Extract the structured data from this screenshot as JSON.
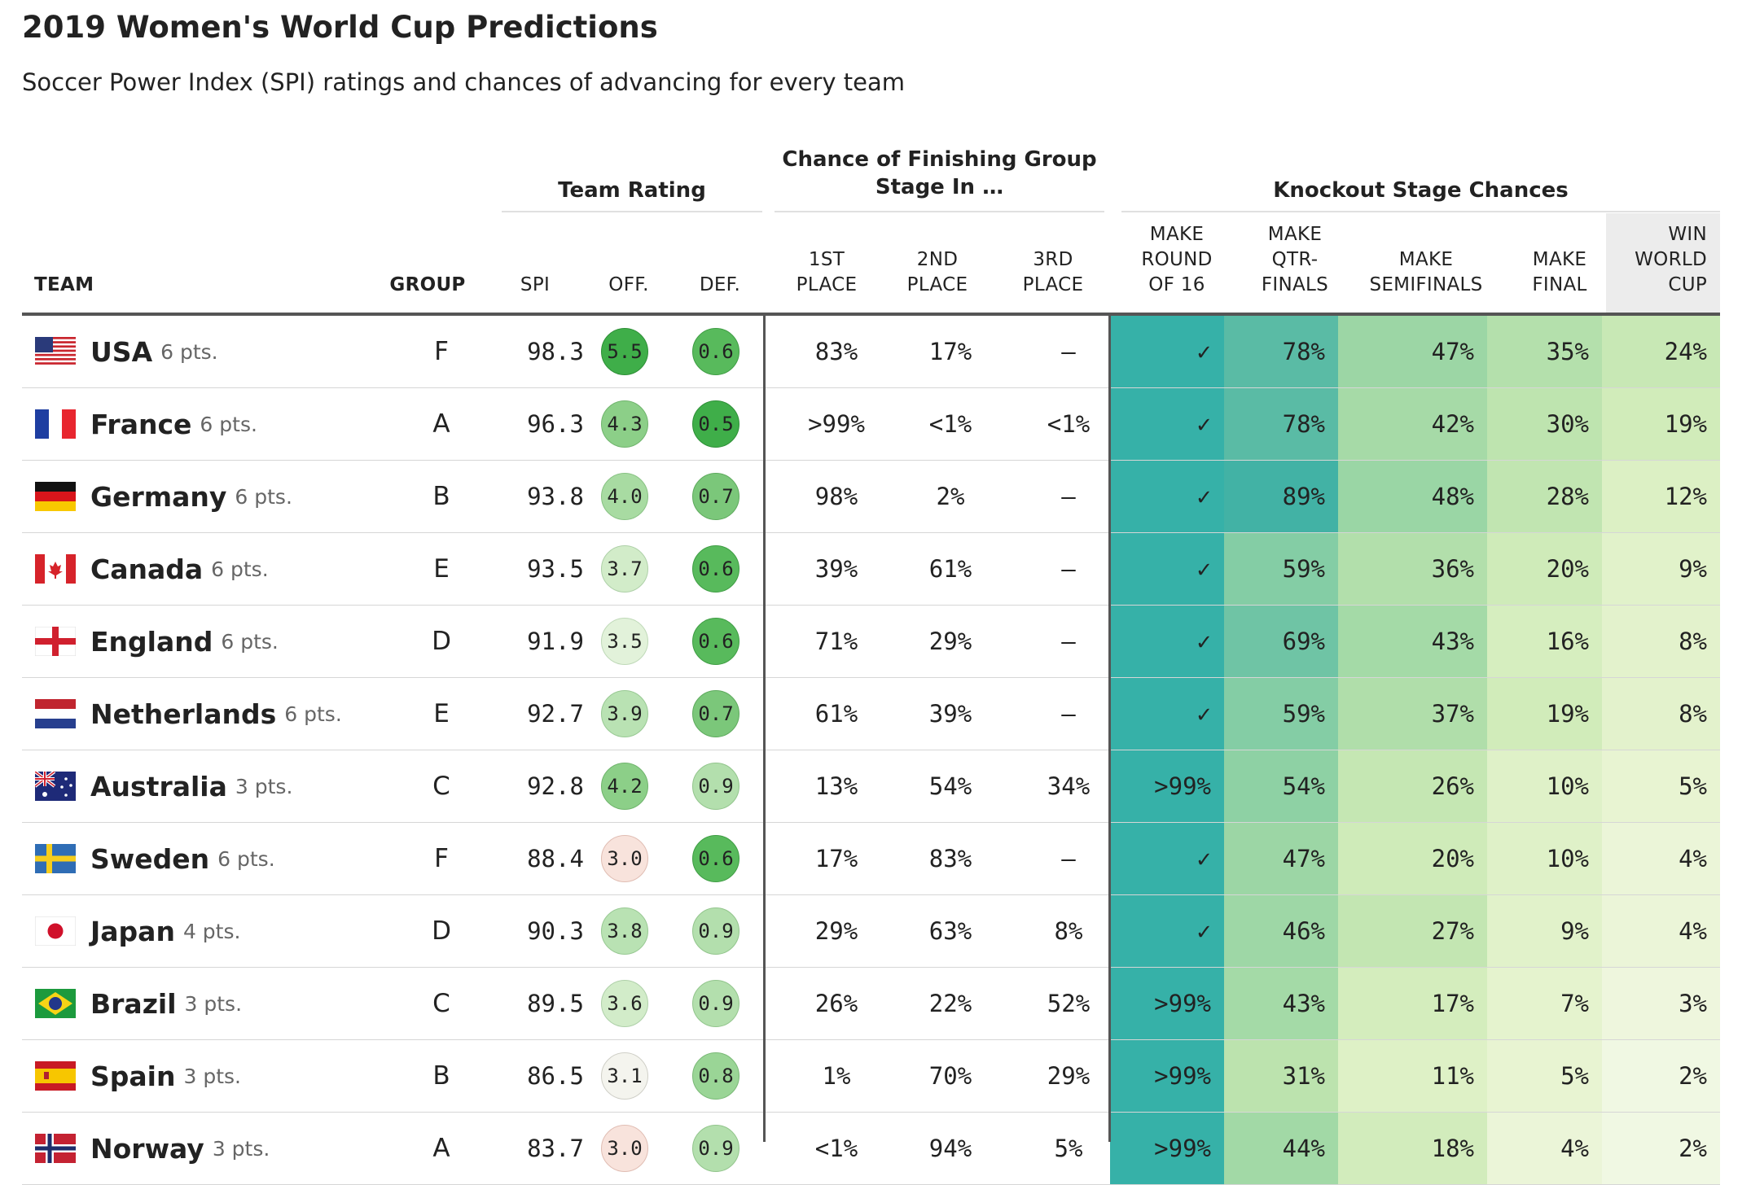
{
  "title": "2019 Women's World Cup Predictions",
  "subtitle": "Soccer Power Index (SPI) ratings and chances of advancing for every team",
  "group_headers": {
    "team_rating": "Team Rating",
    "group_stage_line1": "Chance of Finishing Group",
    "group_stage_line2": "Stage In …",
    "knockout": "Knockout Stage Chances"
  },
  "columns": {
    "team": "TEAM",
    "group": "GROUP",
    "spi": "SPI",
    "off": "OFF.",
    "def": "DEF.",
    "first": [
      "1ST",
      "PLACE"
    ],
    "second": [
      "2ND",
      "PLACE"
    ],
    "third": [
      "3RD",
      "PLACE"
    ],
    "r16": [
      "MAKE",
      "ROUND",
      "OF 16"
    ],
    "qf": [
      "MAKE",
      "QTR-",
      "FINALS"
    ],
    "sf": [
      "MAKE",
      "SEMIFINALS"
    ],
    "final": [
      "MAKE",
      "FINAL"
    ],
    "win": [
      "WIN",
      "WORLD",
      "CUP"
    ]
  },
  "colors": {
    "teal_dark": "#36b1a8",
    "teal_mid": "#52bba6",
    "green_good": "#3fae49",
    "red_bad": "#f4d2cc",
    "rule": "#555555"
  },
  "teams": [
    {
      "flag": "flag-usa",
      "name": "USA",
      "pts": "6 pts.",
      "group": "F",
      "spi": "98.3",
      "off": "5.5",
      "def": "0.6",
      "first": "83%",
      "second": "17%",
      "third": "–",
      "r16": "✓",
      "qf": "78%",
      "sf": "47%",
      "final": "35%",
      "win": "24%"
    },
    {
      "flag": "flag-france",
      "name": "France",
      "pts": "6 pts.",
      "group": "A",
      "spi": "96.3",
      "off": "4.3",
      "def": "0.5",
      "first": ">99%",
      "second": "<1%",
      "third": "<1%",
      "r16": "✓",
      "qf": "78%",
      "sf": "42%",
      "final": "30%",
      "win": "19%"
    },
    {
      "flag": "flag-germany",
      "name": "Germany",
      "pts": "6 pts.",
      "group": "B",
      "spi": "93.8",
      "off": "4.0",
      "def": "0.7",
      "first": "98%",
      "second": "2%",
      "third": "–",
      "r16": "✓",
      "qf": "89%",
      "sf": "48%",
      "final": "28%",
      "win": "12%"
    },
    {
      "flag": "flag-canada",
      "name": "Canada",
      "pts": "6 pts.",
      "group": "E",
      "spi": "93.5",
      "off": "3.7",
      "def": "0.6",
      "first": "39%",
      "second": "61%",
      "third": "–",
      "r16": "✓",
      "qf": "59%",
      "sf": "36%",
      "final": "20%",
      "win": "9%"
    },
    {
      "flag": "flag-england",
      "name": "England",
      "pts": "6 pts.",
      "group": "D",
      "spi": "91.9",
      "off": "3.5",
      "def": "0.6",
      "first": "71%",
      "second": "29%",
      "third": "–",
      "r16": "✓",
      "qf": "69%",
      "sf": "43%",
      "final": "16%",
      "win": "8%"
    },
    {
      "flag": "flag-netherlands",
      "name": "Netherlands",
      "pts": "6 pts.",
      "group": "E",
      "spi": "92.7",
      "off": "3.9",
      "def": "0.7",
      "first": "61%",
      "second": "39%",
      "third": "–",
      "r16": "✓",
      "qf": "59%",
      "sf": "37%",
      "final": "19%",
      "win": "8%"
    },
    {
      "flag": "flag-australia",
      "name": "Australia",
      "pts": "3 pts.",
      "group": "C",
      "spi": "92.8",
      "off": "4.2",
      "def": "0.9",
      "first": "13%",
      "second": "54%",
      "third": "34%",
      "r16": ">99%",
      "qf": "54%",
      "sf": "26%",
      "final": "10%",
      "win": "5%"
    },
    {
      "flag": "flag-sweden",
      "name": "Sweden",
      "pts": "6 pts.",
      "group": "F",
      "spi": "88.4",
      "off": "3.0",
      "def": "0.6",
      "first": "17%",
      "second": "83%",
      "third": "–",
      "r16": "✓",
      "qf": "47%",
      "sf": "20%",
      "final": "10%",
      "win": "4%"
    },
    {
      "flag": "flag-japan",
      "name": "Japan",
      "pts": "4 pts.",
      "group": "D",
      "spi": "90.3",
      "off": "3.8",
      "def": "0.9",
      "first": "29%",
      "second": "63%",
      "third": "8%",
      "r16": "✓",
      "qf": "46%",
      "sf": "27%",
      "final": "9%",
      "win": "4%"
    },
    {
      "flag": "flag-brazil",
      "name": "Brazil",
      "pts": "3 pts.",
      "group": "C",
      "spi": "89.5",
      "off": "3.6",
      "def": "0.9",
      "first": "26%",
      "second": "22%",
      "third": "52%",
      "r16": ">99%",
      "qf": "43%",
      "sf": "17%",
      "final": "7%",
      "win": "3%"
    },
    {
      "flag": "flag-spain",
      "name": "Spain",
      "pts": "3 pts.",
      "group": "B",
      "spi": "86.5",
      "off": "3.1",
      "def": "0.8",
      "first": "1%",
      "second": "70%",
      "third": "29%",
      "r16": ">99%",
      "qf": "31%",
      "sf": "11%",
      "final": "5%",
      "win": "2%"
    },
    {
      "flag": "flag-norway",
      "name": "Norway",
      "pts": "3 pts.",
      "group": "A",
      "spi": "83.7",
      "off": "3.0",
      "def": "0.9",
      "first": "<1%",
      "second": "94%",
      "third": "5%",
      "r16": ">99%",
      "qf": "44%",
      "sf": "18%",
      "final": "4%",
      "win": "2%"
    }
  ]
}
